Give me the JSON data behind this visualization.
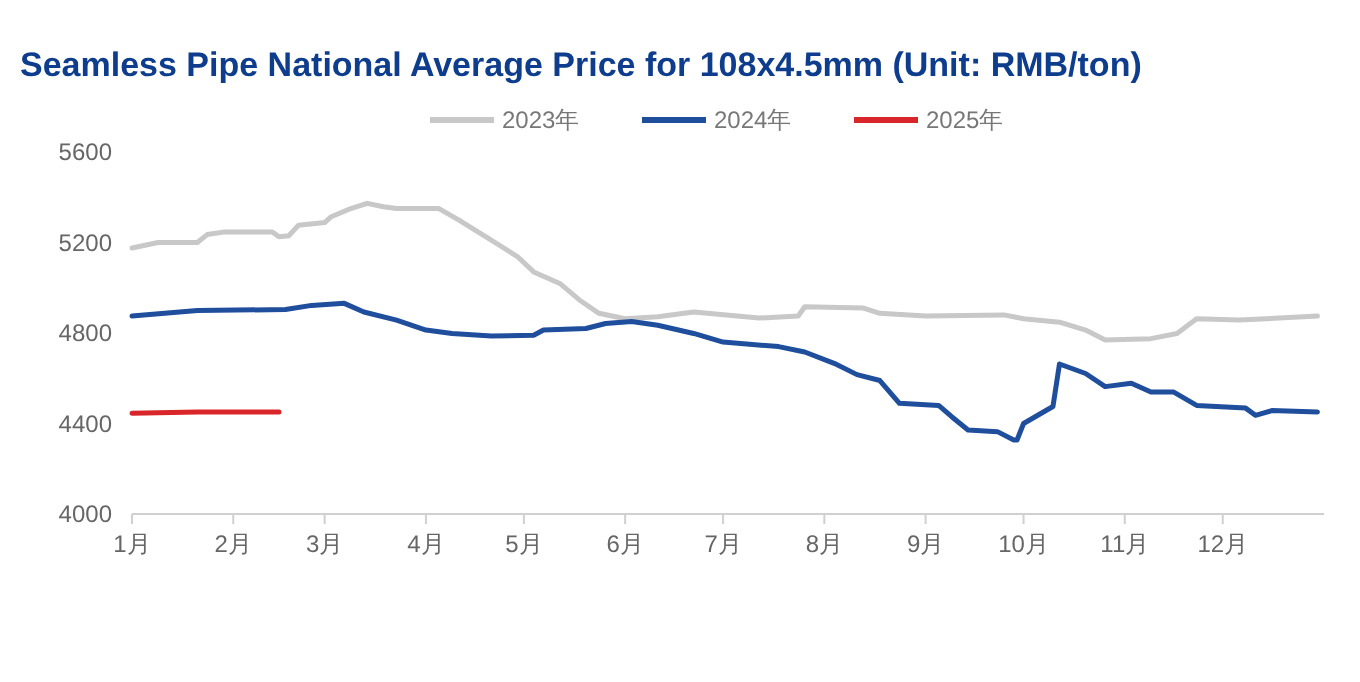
{
  "chart_data": {
    "type": "line",
    "title": "Seamless Pipe National Average Price for 108x4.5mm (Unit: RMB/ton)",
    "xlim": [
      "--01-01",
      "--12-31"
    ],
    "xticks": [
      {
        "value": "--01-01",
        "label": "1月"
      },
      {
        "value": "--02-01",
        "label": "2月"
      },
      {
        "value": "--03-01",
        "label": "3月"
      },
      {
        "value": "--04-01",
        "label": "4月"
      },
      {
        "value": "--05-01",
        "label": "5月"
      },
      {
        "value": "--06-01",
        "label": "6月"
      },
      {
        "value": "--07-01",
        "label": "7月"
      },
      {
        "value": "--08-01",
        "label": "8月"
      },
      {
        "value": "--09-01",
        "label": "9月"
      },
      {
        "value": "--10-01",
        "label": "10月"
      },
      {
        "value": "--11-01",
        "label": "11月"
      },
      {
        "value": "--12-01",
        "label": "12月"
      }
    ],
    "ylim": [
      4000,
      5600
    ],
    "yticks": [
      4000,
      4400,
      4800,
      5200,
      5600
    ],
    "legend": "top",
    "grid": false,
    "series": [
      {
        "name": "2023年",
        "color": "#c8c8c8",
        "x": [
          "--01-01",
          "--01-09",
          "--01-21",
          "--01-24",
          "--01-29",
          "--02-13",
          "--02-15",
          "--02-18",
          "--02-21",
          "--03-01",
          "--03-03",
          "--03-09",
          "--03-14",
          "--03-19",
          "--03-23",
          "--04-05",
          "--04-11",
          "--04-21",
          "--04-29",
          "--05-04",
          "--05-12",
          "--05-18",
          "--05-24",
          "--06-01",
          "--06-11",
          "--06-22",
          "--07-12",
          "--07-24",
          "--07-26",
          "--08-13",
          "--08-18",
          "--09-01",
          "--09-25",
          "--10-01",
          "--10-12",
          "--10-20",
          "--10-26",
          "--11-09",
          "--11-17",
          "--11-23",
          "--12-06",
          "--12-30"
        ],
        "values": [
          5176,
          5200,
          5200,
          5235,
          5246,
          5246,
          5225,
          5230,
          5276,
          5288,
          5314,
          5350,
          5373,
          5358,
          5350,
          5350,
          5300,
          5211,
          5138,
          5070,
          5019,
          4946,
          4887,
          4863,
          4872,
          4893,
          4866,
          4875,
          4916,
          4910,
          4887,
          4875,
          4880,
          4863,
          4848,
          4813,
          4769,
          4775,
          4798,
          4863,
          4857,
          4875
        ]
      },
      {
        "name": "2024年",
        "color": "#1f4e9c",
        "x": [
          "--01-01",
          "--01-21",
          "--02-17",
          "--02-25",
          "--03-07",
          "--03-13",
          "--03-23",
          "--04-01",
          "--04-09",
          "--04-21",
          "--05-04",
          "--05-07",
          "--05-20",
          "--05-26",
          "--06-03",
          "--06-11",
          "--06-22",
          "--07-01",
          "--07-18",
          "--07-26",
          "--08-04",
          "--08-11",
          "--08-18",
          "--08-24",
          "--09-05",
          "--09-09",
          "--09-14",
          "--09-23",
          "--09-28",
          "--09-29",
          "--10-01",
          "--10-10",
          "--10-12",
          "--10-20",
          "--10-26",
          "--11-03",
          "--11-09",
          "--11-16",
          "--11-23",
          "--12-08",
          "--12-11",
          "--12-16",
          "--12-30"
        ],
        "values": [
          4875,
          4899,
          4904,
          4922,
          4931,
          4893,
          4857,
          4813,
          4798,
          4787,
          4790,
          4813,
          4820,
          4842,
          4851,
          4834,
          4798,
          4760,
          4740,
          4716,
          4666,
          4616,
          4590,
          4489,
          4480,
          4430,
          4371,
          4364,
          4327,
          4327,
          4400,
          4475,
          4663,
          4621,
          4563,
          4578,
          4539,
          4539,
          4480,
          4468,
          4436,
          4457,
          4451
        ]
      },
      {
        "name": "2025年",
        "color": "#d9262b",
        "x": [
          "--01-01",
          "--01-21",
          "--02-15"
        ],
        "values": [
          4445,
          4451,
          4451
        ]
      }
    ]
  }
}
